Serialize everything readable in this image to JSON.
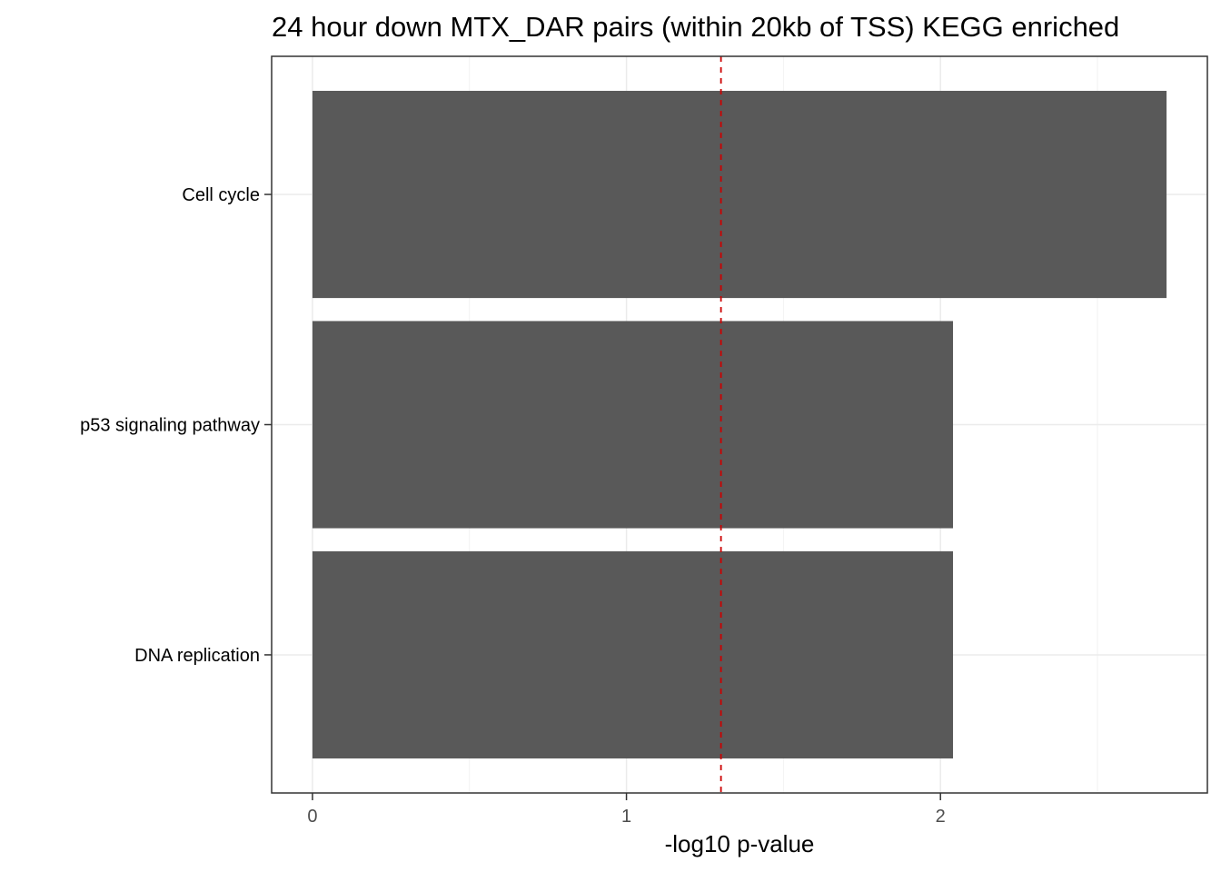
{
  "chart_data": {
    "type": "bar",
    "orientation": "horizontal",
    "title": "24 hour down MTX_DAR pairs (within 20kb of TSS) KEGG enriched",
    "xlabel": "-log10 p-value",
    "ylabel": "",
    "categories": [
      "Cell cycle",
      "p53 signaling pathway",
      "DNA replication"
    ],
    "values": [
      2.72,
      2.04,
      2.04
    ],
    "xlim": [
      -0.13,
      2.85
    ],
    "xticks": [
      0,
      1,
      2
    ],
    "xtick_labels": [
      "0",
      "1",
      "2"
    ],
    "reference_line": {
      "x": 1.301,
      "style": "dashed",
      "color": "#cc0000"
    },
    "bar_color": "#595959",
    "grid": true,
    "legend": "none"
  }
}
